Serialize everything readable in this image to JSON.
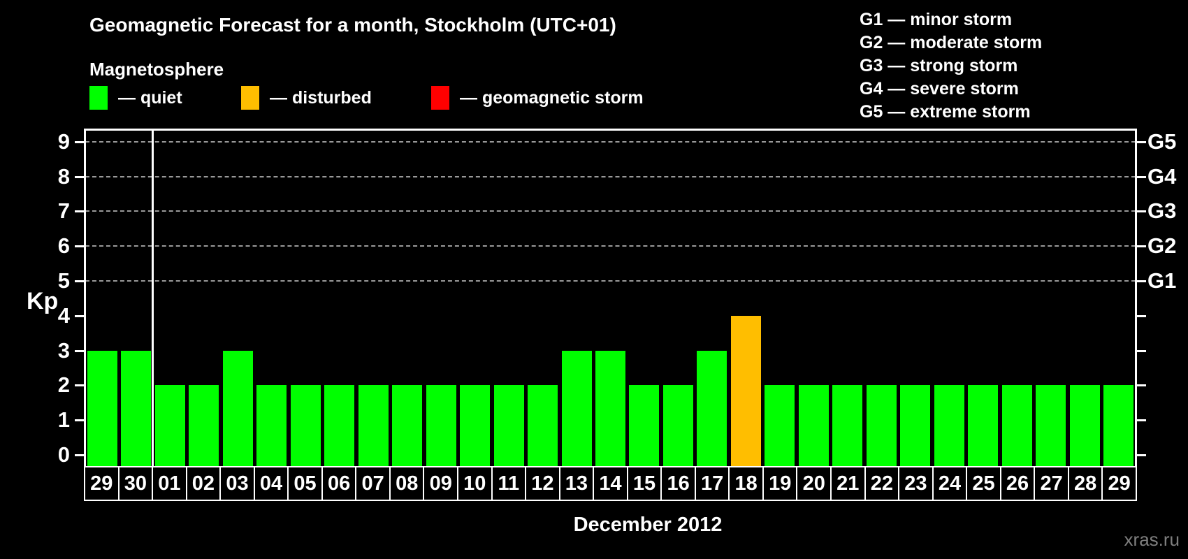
{
  "title": "Geomagnetic Forecast for a month, Stockholm (UTC+01)",
  "subtitle": "Magnetosphere",
  "legend": {
    "items": [
      {
        "status": "quiet",
        "label": "— quiet",
        "color": "#00ff00"
      },
      {
        "status": "disturbed",
        "label": "— disturbed",
        "color": "#ffbe00"
      },
      {
        "status": "storm",
        "label": "— geomagnetic storm",
        "color": "#ff0000"
      }
    ]
  },
  "storm_scale": [
    "G1 — minor storm",
    "G2 — moderate storm",
    "G3 — strong storm",
    "G4 — severe storm",
    "G5 — extreme storm"
  ],
  "status_colors": {
    "quiet": "#00ff00",
    "disturbed": "#ffbe00",
    "storm": "#ff0000"
  },
  "chart_data": {
    "type": "bar",
    "title": "Geomagnetic Forecast for a month, Stockholm (UTC+01)",
    "xlabel": "December 2012",
    "ylabel": "Kp",
    "ylim": [
      0,
      9
    ],
    "yticks": [
      0,
      1,
      2,
      3,
      4,
      5,
      6,
      7,
      8,
      9
    ],
    "grid_levels_kp": [
      5,
      6,
      7,
      8,
      9
    ],
    "grid": "dashed",
    "legend_position": "top-left",
    "categories": [
      "29",
      "30",
      "01",
      "02",
      "03",
      "04",
      "05",
      "06",
      "07",
      "08",
      "09",
      "10",
      "11",
      "12",
      "13",
      "14",
      "15",
      "16",
      "17",
      "18",
      "19",
      "20",
      "21",
      "22",
      "23",
      "24",
      "25",
      "26",
      "27",
      "28",
      "29"
    ],
    "values": [
      3,
      3,
      2,
      2,
      3,
      2,
      2,
      2,
      2,
      2,
      2,
      2,
      2,
      2,
      3,
      3,
      2,
      2,
      3,
      4,
      2,
      2,
      2,
      2,
      2,
      2,
      2,
      2,
      2,
      2,
      2
    ],
    "statuses": [
      "quiet",
      "quiet",
      "quiet",
      "quiet",
      "quiet",
      "quiet",
      "quiet",
      "quiet",
      "quiet",
      "quiet",
      "quiet",
      "quiet",
      "quiet",
      "quiet",
      "quiet",
      "quiet",
      "quiet",
      "quiet",
      "quiet",
      "disturbed",
      "quiet",
      "quiet",
      "quiet",
      "quiet",
      "quiet",
      "quiet",
      "quiet",
      "quiet",
      "quiet",
      "quiet",
      "quiet"
    ],
    "month_separator_after_index": 1,
    "right_axis_labels": [
      {
        "label": "G1",
        "kp": 5
      },
      {
        "label": "G2",
        "kp": 6
      },
      {
        "label": "G3",
        "kp": 7
      },
      {
        "label": "G4",
        "kp": 8
      },
      {
        "label": "G5",
        "kp": 9
      }
    ]
  },
  "watermark": "xras.ru",
  "colors": {
    "background": "#000000",
    "axis": "#ffffff",
    "grid": "#999999",
    "text": "#ffffff",
    "watermark": "#7f7f7f"
  }
}
